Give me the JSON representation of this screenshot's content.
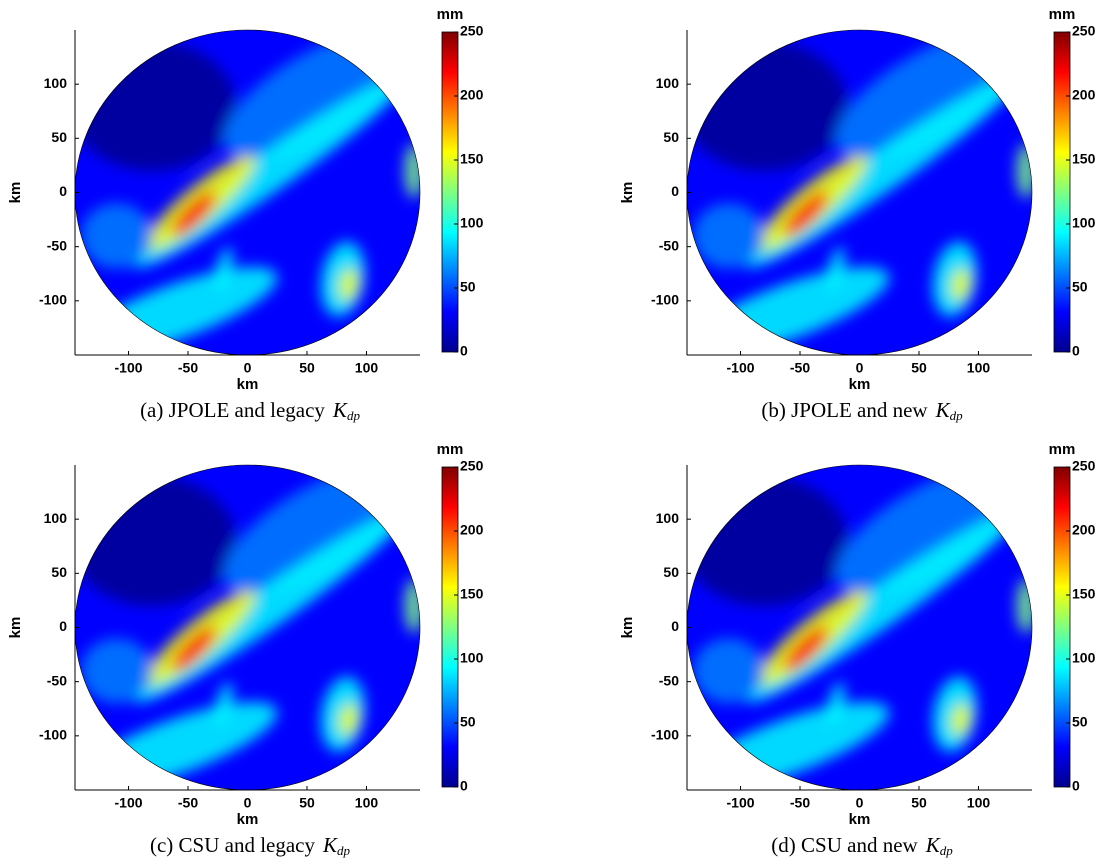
{
  "chart_data": [
    {
      "type": "heatmap",
      "caption": "(a) JPOLE and legacy",
      "symbol": "K",
      "symbol_sub": "dp",
      "xlabel": "km",
      "ylabel": "km",
      "xlim": [
        -145,
        145
      ],
      "ylim": [
        -150,
        150
      ],
      "xticks": [
        -100,
        -50,
        0,
        50,
        100
      ],
      "yticks": [
        -100,
        -50,
        0,
        50,
        100
      ],
      "colormap": "jet",
      "colorbar_label": "mm",
      "clim": [
        0,
        250
      ],
      "cticks": [
        0,
        50,
        100,
        150,
        200,
        250
      ]
    },
    {
      "type": "heatmap",
      "caption": "(b) JPOLE and new",
      "symbol": "K",
      "symbol_sub": "dp",
      "xlabel": "km",
      "ylabel": "km",
      "xlim": [
        -145,
        145
      ],
      "ylim": [
        -150,
        150
      ],
      "xticks": [
        -100,
        -50,
        0,
        50,
        100
      ],
      "yticks": [
        -100,
        -50,
        0,
        50,
        100
      ],
      "colormap": "jet",
      "colorbar_label": "mm",
      "clim": [
        0,
        250
      ],
      "cticks": [
        0,
        50,
        100,
        150,
        200,
        250
      ]
    },
    {
      "type": "heatmap",
      "caption": "(c) CSU and legacy",
      "symbol": "K",
      "symbol_sub": "dp",
      "xlabel": "km",
      "ylabel": "km",
      "xlim": [
        -145,
        145
      ],
      "ylim": [
        -150,
        150
      ],
      "xticks": [
        -100,
        -50,
        0,
        50,
        100
      ],
      "yticks": [
        -100,
        -50,
        0,
        50,
        100
      ],
      "colormap": "jet",
      "colorbar_label": "mm",
      "clim": [
        0,
        250
      ],
      "cticks": [
        0,
        50,
        100,
        150,
        200,
        250
      ]
    },
    {
      "type": "heatmap",
      "caption": "(d) CSU and new",
      "symbol": "K",
      "symbol_sub": "dp",
      "xlabel": "km",
      "ylabel": "km",
      "xlim": [
        -145,
        145
      ],
      "ylim": [
        -150,
        150
      ],
      "xticks": [
        -100,
        -50,
        0,
        50,
        100
      ],
      "yticks": [
        -100,
        -50,
        0,
        50,
        100
      ],
      "colormap": "jet",
      "colorbar_label": "mm",
      "clim": [
        0,
        250
      ],
      "cticks": [
        0,
        50,
        100,
        150,
        200,
        250
      ]
    }
  ]
}
